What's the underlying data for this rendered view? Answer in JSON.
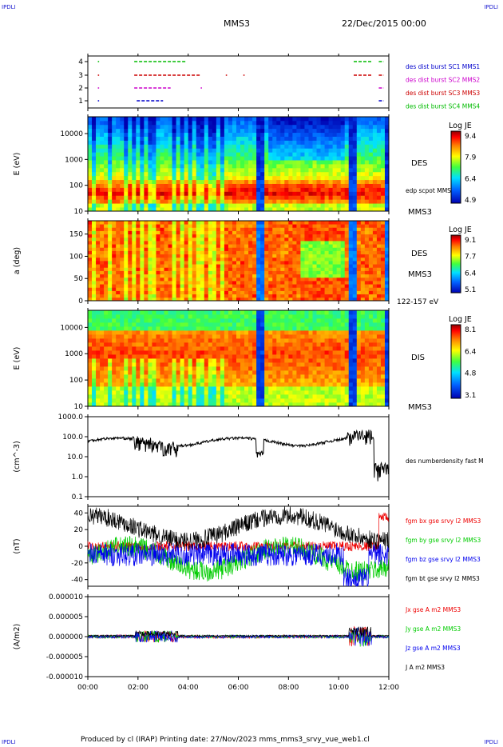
{
  "corner_labels": [
    "IPDLI",
    "IPDLI",
    "IPDLI",
    "IPDLI"
  ],
  "header": {
    "spacecraft": "MMS3",
    "date": "22/Dec/2015 00:00"
  },
  "footer": "Produced by cl (IRAP)   Printing date: 27/Nov/2023   mms_mms3_srvy_vue_web1.cl",
  "chart_data": [
    {
      "type": "scatter",
      "name": "burst availability",
      "yticks": [
        "1",
        "2",
        "3",
        "4"
      ],
      "legend": [
        {
          "label": "des dist burst SC1 MMS1",
          "color": "#0000cc"
        },
        {
          "label": "des dist burst SC2 MMS2",
          "color": "#cc00cc"
        },
        {
          "label": "des dist burst SC3 MMS3",
          "color": "#cc0000"
        },
        {
          "label": "des dist burst SC4 MMS4",
          "color": "#00bb00"
        }
      ],
      "intervals": [
        {
          "sc": 4,
          "color": "#00bb00",
          "segments": [
            [
              0.4,
              0.45
            ],
            [
              1.85,
              3.95
            ],
            [
              10.6,
              11.3
            ],
            [
              11.6,
              11.8
            ]
          ]
        },
        {
          "sc": 3,
          "color": "#cc0000",
          "segments": [
            [
              0.4,
              0.45
            ],
            [
              1.85,
              4.5
            ],
            [
              5.5,
              5.55
            ],
            [
              6.2,
              6.25
            ],
            [
              10.6,
              11.3
            ],
            [
              11.6,
              11.8
            ]
          ]
        },
        {
          "sc": 2,
          "color": "#cc00cc",
          "segments": [
            [
              0.4,
              0.45
            ],
            [
              1.85,
              3.3
            ],
            [
              4.5,
              4.55
            ],
            [
              11.6,
              11.8
            ]
          ]
        },
        {
          "sc": 1,
          "color": "#0000cc",
          "segments": [
            [
              0.4,
              0.45
            ],
            [
              1.95,
              3.0
            ],
            [
              11.6,
              11.8
            ]
          ]
        }
      ]
    },
    {
      "type": "heatmap",
      "ylabel": "E (eV)",
      "yticks": [
        "10",
        "100",
        "1000",
        "10000"
      ],
      "side_label": "DES",
      "side_label2": "MMS3",
      "overlay_label": "edp scpot MMS3",
      "colorbar": {
        "title": "Log JE",
        "max": "9.4",
        "mid1": "7.9",
        "mid2": "6.4",
        "min": "4.9"
      }
    },
    {
      "type": "heatmap",
      "ylabel": "a (deg)",
      "yticks": [
        "0",
        "50",
        "100",
        "150"
      ],
      "side_label": "DES",
      "side_label2": "MMS3",
      "energy_range": "122-157 eV",
      "colorbar": {
        "title": "Log JE",
        "max": "9.1",
        "mid1": "7.7",
        "mid2": "6.4",
        "min": "5.1"
      }
    },
    {
      "type": "heatmap",
      "ylabel": "E (eV)",
      "yticks": [
        "10",
        "100",
        "1000",
        "10000"
      ],
      "side_label": "DIS",
      "side_label2": "MMS3",
      "colorbar": {
        "title": "Log JE",
        "max": "8.1",
        "mid1": "6.4",
        "mid2": "4.8",
        "min": "3.1"
      }
    },
    {
      "type": "line",
      "ylabel": "(cm^-3)",
      "yticks": [
        "0.1",
        "1.0",
        "10.0",
        "100.0",
        "1000.0"
      ],
      "yscale": "log",
      "series": [
        {
          "name": "des numberdensity fast M",
          "color": "#000000"
        }
      ]
    },
    {
      "type": "line",
      "ylabel": "(nT)",
      "yticks": [
        "-40",
        "-20",
        "0",
        "20",
        "40"
      ],
      "ylim": [
        -48,
        48
      ],
      "series": [
        {
          "name": "fgm bx gse srvy l2 MMS3",
          "color": "#ee0000"
        },
        {
          "name": "fgm by gse srvy l2 MMS3",
          "color": "#00cc00"
        },
        {
          "name": "fgm bz gse srvy l2 MMS3",
          "color": "#0000ee"
        },
        {
          "name": "fgm bt gse srvy l2 MMS3",
          "color": "#000000"
        }
      ]
    },
    {
      "type": "line",
      "ylabel": "(A/m2)",
      "yticks": [
        "-0.000010",
        "-0.000005",
        "0.000000",
        "0.000005",
        "0.000010"
      ],
      "ylim": [
        -1e-05,
        1e-05
      ],
      "series": [
        {
          "name": "Jx gse A m2 MMS3",
          "color": "#ee0000"
        },
        {
          "name": "Jy gse A m2 MMS3",
          "color": "#00cc00"
        },
        {
          "name": "Jz gse A m2 MMS3",
          "color": "#0000ee"
        },
        {
          "name": "J A m2 MMS3",
          "color": "#000000"
        }
      ]
    }
  ],
  "xaxis": {
    "ticks": [
      "00:00",
      "02:00",
      "04:00",
      "06:00",
      "08:00",
      "10:00",
      "12:00"
    ],
    "range_hours": [
      0,
      12
    ]
  }
}
